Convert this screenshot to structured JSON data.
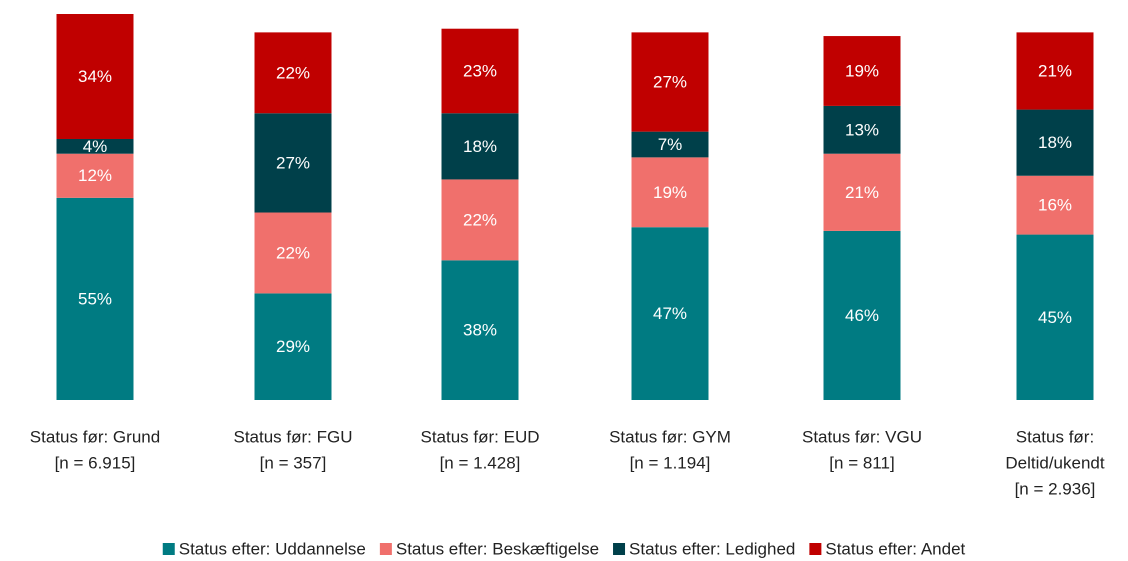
{
  "chart_data": {
    "type": "stacked_bar",
    "categories": [
      [
        "Status før: Grund",
        "[n = 6.915]"
      ],
      [
        "Status før: FGU",
        "[n = 357]"
      ],
      [
        "Status før: EUD",
        "[n = 1.428]"
      ],
      [
        "Status før: GYM",
        "[n = 1.194]"
      ],
      [
        "Status før: VGU",
        "[n = 811]"
      ],
      [
        "Status før:",
        "Deltid/ukendt",
        "[n = 2.936]"
      ]
    ],
    "series": [
      {
        "name": "Status efter: Uddannelse",
        "color": "#007b82",
        "values": [
          55,
          29,
          38,
          47,
          46,
          45
        ]
      },
      {
        "name": "Status efter: Beskæftigelse",
        "color": "#f0706c",
        "values": [
          12,
          22,
          22,
          19,
          21,
          16
        ]
      },
      {
        "name": "Status efter: Ledighed",
        "color": "#00404a",
        "values": [
          4,
          27,
          18,
          7,
          13,
          18
        ]
      },
      {
        "name": "Status efter: Andet",
        "color": "#c00000",
        "values": [
          34,
          22,
          23,
          27,
          19,
          21
        ]
      }
    ],
    "value_labels": [
      [
        "55%",
        "29%",
        "38%",
        "47%",
        "46%",
        "45%"
      ],
      [
        "12%",
        "22%",
        "22%",
        "19%",
        "21%",
        "16%"
      ],
      [
        "4%",
        "27%",
        "18%",
        "7%",
        "13%",
        "18%"
      ],
      [
        "34%",
        "22%",
        "23%",
        "27%",
        "19%",
        "21%"
      ]
    ],
    "legend": "bottom"
  }
}
